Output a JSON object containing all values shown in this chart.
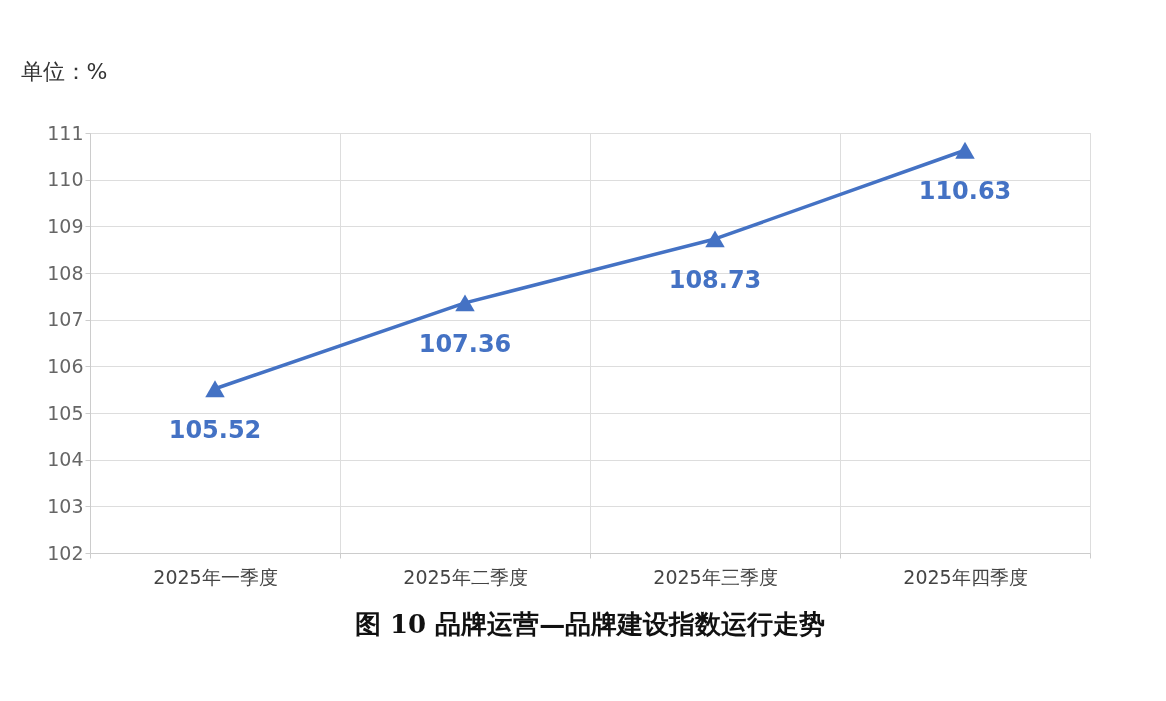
{
  "chart_data": {
    "type": "line",
    "title": "图 10  品牌运营—品牌建设指数运行走势",
    "ylabel": "单位：%",
    "categories": [
      "2025年一季度",
      "2025年二季度",
      "2025年三季度",
      "2025年四季度"
    ],
    "series": [
      {
        "color": "#4472c4",
        "values": [
          105.52,
          107.36,
          108.73,
          110.63
        ]
      }
    ],
    "ylim": [
      102,
      111
    ],
    "yticks": [
      102,
      103,
      104,
      105,
      106,
      107,
      108,
      109,
      110,
      111
    ],
    "grid": true,
    "marker": "triangle",
    "line_style": "solid",
    "data_labels": true
  }
}
